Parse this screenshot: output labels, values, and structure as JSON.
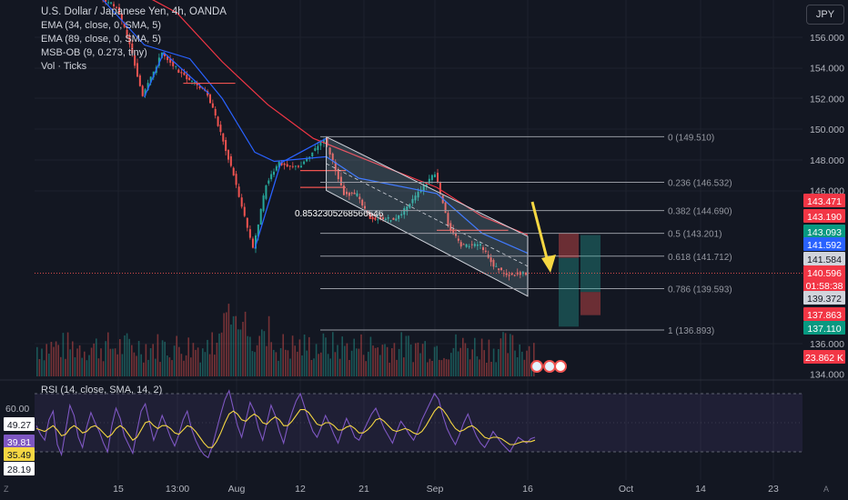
{
  "symbol_title": "U.S. Dollar / Japanese Yen, 4h, OANDA",
  "indicators": [
    "EMA (34, close, 0, SMA, 5)",
    "EMA (89, close, 0, SMA, 5)",
    "MSB-OB (9, 0.273, tiny)",
    "Vol · Ticks"
  ],
  "rsi_label": "RSI (14, close, SMA, 14, 2)",
  "currency": "JPY",
  "corner_left": "Z",
  "corner_right": "A",
  "colors": {
    "background": "#131722",
    "up": "#26a69a",
    "down": "#ef5350",
    "ema34": "#2962ff",
    "ema89": "#f23645",
    "channel_fill": "#b2ebf2",
    "rsi_line": "#7e57c2",
    "rsi_ma": "#f5d742",
    "arrow": "#f5d742"
  },
  "chart_data": [
    {
      "type": "candlestick",
      "title": "U.S. Dollar / Japanese Yen, 4h, OANDA",
      "y_axis": {
        "ticks": [
          "156.000",
          "154.000",
          "152.000",
          "150.000",
          "148.000",
          "146.000",
          "136.000",
          "134.000"
        ],
        "tick_values": [
          156,
          154,
          152,
          150,
          148,
          146,
          136,
          134
        ],
        "range": [
          133.6,
          159.1
        ]
      },
      "x_axis": {
        "ticks": [
          "15",
          "13:00",
          "Aug",
          "12",
          "21",
          "Sep",
          "16",
          "Oct",
          "14",
          "23"
        ]
      },
      "price_path": [
        {
          "x": "Jul 10",
          "y": 159.0
        },
        {
          "x": "Jul 15",
          "y": 158.0
        },
        {
          "x": "Jul 17",
          "y": 155.6
        },
        {
          "x": "Jul 19",
          "y": 152.1
        },
        {
          "x": "Jul 22",
          "y": 155.0
        },
        {
          "x": "Jul 25",
          "y": 153.6
        },
        {
          "x": "Jul 29",
          "y": 152.3
        },
        {
          "x": "Jul 31",
          "y": 149.8
        },
        {
          "x": "Aug 2",
          "y": 147.0
        },
        {
          "x": "Aug 5",
          "y": 142.2
        },
        {
          "x": "Aug 7",
          "y": 146.4
        },
        {
          "x": "Aug 9",
          "y": 147.8
        },
        {
          "x": "Aug 12",
          "y": 147.5
        },
        {
          "x": "Aug 15",
          "y": 148.9
        },
        {
          "x": "Aug 16",
          "y": 149.4
        },
        {
          "x": "Aug 19",
          "y": 145.8
        },
        {
          "x": "Aug 21",
          "y": 145.7
        },
        {
          "x": "Aug 23",
          "y": 144.2
        },
        {
          "x": "Aug 27",
          "y": 144.1
        },
        {
          "x": "Sep 2",
          "y": 147.1
        },
        {
          "x": "Sep 4",
          "y": 143.8
        },
        {
          "x": "Sep 6",
          "y": 142.4
        },
        {
          "x": "Sep 9",
          "y": 142.4
        },
        {
          "x": "Sep 11",
          "y": 141.1
        },
        {
          "x": "Sep 13",
          "y": 140.5
        },
        {
          "x": "Sep 16",
          "y": 140.6
        }
      ],
      "ema34_path": [
        {
          "x": "Jul 11",
          "y": 159.2
        },
        {
          "x": "Jul 19",
          "y": 155.5
        },
        {
          "x": "Jul 26",
          "y": 154.6
        },
        {
          "x": "Jul 31",
          "y": 152.0
        },
        {
          "x": "Aug 5",
          "y": 148.5
        },
        {
          "x": "Aug 8",
          "y": 147.9
        },
        {
          "x": "Aug 16",
          "y": 148.2
        },
        {
          "x": "Aug 21",
          "y": 146.8
        },
        {
          "x": "Sep 2",
          "y": 145.8
        },
        {
          "x": "Sep 9",
          "y": 143.2
        },
        {
          "x": "Sep 16",
          "y": 141.9
        }
      ],
      "ema89_path": [
        {
          "x": "Jul 17",
          "y": 159.2
        },
        {
          "x": "Jul 24",
          "y": 157.6
        },
        {
          "x": "Jul 31",
          "y": 154.4
        },
        {
          "x": "Aug 7",
          "y": 151.6
        },
        {
          "x": "Aug 14",
          "y": 149.4
        },
        {
          "x": "Aug 21",
          "y": 148.2
        },
        {
          "x": "Sep 2",
          "y": 146.2
        },
        {
          "x": "Sep 9",
          "y": 144.3
        },
        {
          "x": "Sep 16",
          "y": 143.1
        }
      ],
      "fibonacci": [
        {
          "level": "0",
          "value": "(149.510)",
          "price": 149.51
        },
        {
          "level": "0.236",
          "value": "(146.532)",
          "price": 146.532
        },
        {
          "level": "0.382",
          "value": "(144.690)",
          "price": 144.69
        },
        {
          "level": "0.5",
          "value": "(143.201)",
          "price": 143.201
        },
        {
          "level": "0.618",
          "value": "(141.712)",
          "price": 141.712
        },
        {
          "level": "0.786",
          "value": "(139.593)",
          "price": 139.593
        },
        {
          "level": "1",
          "value": "(136.893)",
          "price": 136.893
        }
      ],
      "channel_annotation": "0.8532305268566646",
      "price_labels": [
        {
          "text": "143.471",
          "bg": "#f23645"
        },
        {
          "text": "143.190",
          "bg": "#f23645"
        },
        {
          "text": "143.093",
          "bg": "#089981"
        },
        {
          "text": "141.592",
          "bg": "#2962ff"
        },
        {
          "text": "141.584",
          "bg": "#d1d4dc"
        },
        {
          "text": "140.596",
          "bg": "#f23645"
        },
        {
          "text": "01:58:38",
          "bg": "#f23645"
        },
        {
          "text": "139.372",
          "bg": "#d1d4dc"
        },
        {
          "text": "137.863",
          "bg": "#f23645"
        },
        {
          "text": "137.110",
          "bg": "#089981"
        },
        {
          "text": "23.862 K",
          "bg": "#f23645"
        }
      ],
      "last_price": 140.596
    },
    {
      "type": "line",
      "title": "RSI (14, close, SMA, 14, 2)",
      "y_axis": {
        "ticks": [
          "60.00"
        ],
        "upper_band": 70,
        "lower_band": 30,
        "range": [
          20,
          75
        ]
      },
      "value_labels": [
        {
          "text": "49.27",
          "bg": "#ffffff"
        },
        {
          "text": "39.81",
          "bg": "#7e57c2"
        },
        {
          "text": "35.49",
          "bg": "#f5d742"
        },
        {
          "text": "28.19",
          "bg": "#ffffff"
        }
      ],
      "rsi_values": [
        48,
        42,
        38,
        52,
        58,
        35,
        28,
        45,
        62,
        55,
        40,
        33,
        47,
        57,
        50,
        44,
        36,
        30,
        48,
        60,
        53,
        41,
        35,
        29,
        44,
        58,
        63,
        50,
        38,
        46,
        55,
        48,
        40,
        34,
        42,
        52,
        58,
        46,
        38,
        32,
        28,
        26,
        34,
        45,
        56,
        66,
        72,
        60,
        48,
        40,
        52,
        64,
        58,
        46,
        38,
        50,
        62,
        55,
        44,
        36,
        48,
        57,
        65,
        70,
        61,
        52,
        44,
        40,
        47,
        55,
        49,
        42,
        36,
        45,
        53,
        47,
        40,
        38,
        44,
        50,
        56,
        60,
        53,
        46,
        41,
        36,
        44,
        51,
        47,
        42,
        38,
        44,
        52,
        58,
        64,
        70,
        66,
        55,
        46,
        40,
        35,
        42,
        50,
        56,
        48,
        41,
        36,
        33,
        38,
        44,
        40,
        36,
        33,
        30,
        35,
        40,
        38,
        36,
        39,
        40
      ],
      "rsi_ma_values": [
        46,
        45,
        44,
        46,
        48,
        45,
        41,
        42,
        46,
        48,
        46,
        43,
        44,
        47,
        48,
        46,
        43,
        40,
        42,
        46,
        48,
        46,
        42,
        38,
        40,
        45,
        50,
        51,
        48,
        46,
        48,
        48,
        46,
        43,
        42,
        45,
        48,
        47,
        44,
        40,
        36,
        33,
        33,
        37,
        43,
        50,
        56,
        58,
        56,
        52,
        51,
        54,
        56,
        54,
        50,
        49,
        52,
        54,
        52,
        48,
        48,
        51,
        55,
        59,
        59,
        57,
        53,
        49,
        48,
        50,
        50,
        48,
        45,
        45,
        47,
        48,
        46,
        43,
        43,
        45,
        48,
        52,
        53,
        51,
        48,
        45,
        44,
        45,
        46,
        45,
        43,
        42,
        44,
        48,
        53,
        58,
        61,
        59,
        55,
        50,
        46,
        44,
        45,
        47,
        48,
        46,
        43,
        40,
        39,
        40,
        40,
        39,
        37,
        35,
        35,
        36,
        37,
        37,
        37,
        38
      ]
    }
  ]
}
